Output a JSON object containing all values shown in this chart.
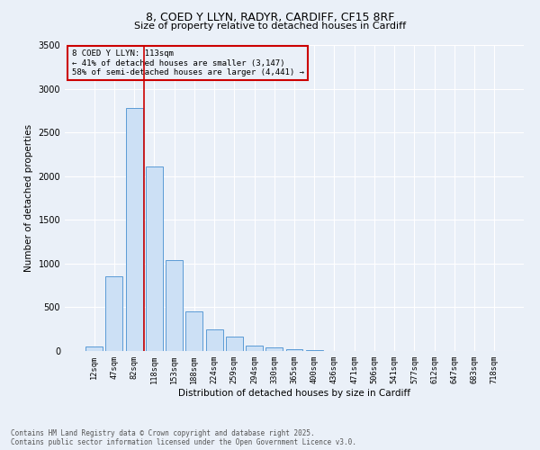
{
  "title_line1": "8, COED Y LLYN, RADYR, CARDIFF, CF15 8RF",
  "title_line2": "Size of property relative to detached houses in Cardiff",
  "xlabel": "Distribution of detached houses by size in Cardiff",
  "ylabel": "Number of detached properties",
  "categories": [
    "12sqm",
    "47sqm",
    "82sqm",
    "118sqm",
    "153sqm",
    "188sqm",
    "224sqm",
    "259sqm",
    "294sqm",
    "330sqm",
    "365sqm",
    "400sqm",
    "436sqm",
    "471sqm",
    "506sqm",
    "541sqm",
    "577sqm",
    "612sqm",
    "647sqm",
    "683sqm",
    "718sqm"
  ],
  "bar_values": [
    50,
    850,
    2780,
    2110,
    1040,
    455,
    250,
    160,
    60,
    45,
    25,
    10,
    5,
    2,
    1,
    1,
    0,
    0,
    0,
    0,
    0
  ],
  "bar_color": "#cce0f5",
  "bar_edge_color": "#5b9bd5",
  "vline_color": "#cc0000",
  "vline_x_index": 2.5,
  "annotation_title": "8 COED Y LLYN: 113sqm",
  "annotation_line2": "← 41% of detached houses are smaller (3,147)",
  "annotation_line3": "58% of semi-detached houses are larger (4,441) →",
  "annotation_box_color": "#cc0000",
  "ylim": [
    0,
    3500
  ],
  "yticks": [
    0,
    500,
    1000,
    1500,
    2000,
    2500,
    3000,
    3500
  ],
  "background_color": "#eaf0f8",
  "grid_color": "#ffffff",
  "footer_line1": "Contains HM Land Registry data © Crown copyright and database right 2025.",
  "footer_line2": "Contains public sector information licensed under the Open Government Licence v3.0."
}
